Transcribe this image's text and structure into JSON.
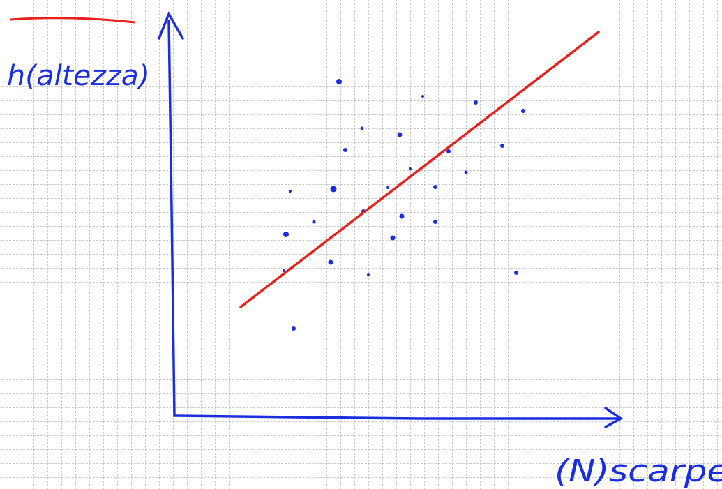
{
  "axis_labels": {
    "y": "h(altezza)",
    "x": "(N)scarpe"
  }
}
